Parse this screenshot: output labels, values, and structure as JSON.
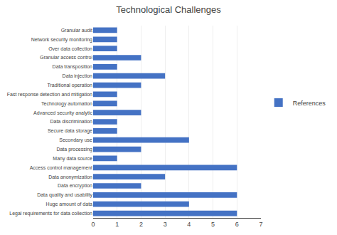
{
  "chart_data": {
    "type": "bar",
    "orientation": "horizontal",
    "title": "Technological Challenges",
    "categories": [
      "Legal requirements for data collection",
      "Huge amount of data",
      "Data quality and usability",
      "Data encryption",
      "Data anonymization",
      "Access control management",
      "Many data source",
      "Data processing",
      "Secondary use",
      "Secure data storage",
      "Data discrimination",
      "Advanced security analytic",
      "Technology automation",
      "Fast response detection and mitigation",
      "Traditional operation",
      "Data injection",
      "Data transposition",
      "Granular access control",
      "Over data collection",
      "Network security monitoring",
      "Granular audit"
    ],
    "series": [
      {
        "name": "References",
        "color": "#4472c4",
        "values": [
          6,
          4,
          6,
          2,
          3,
          6,
          1,
          2,
          4,
          1,
          1,
          2,
          1,
          1,
          2,
          3,
          1,
          2,
          1,
          1,
          1
        ]
      }
    ],
    "xlim": [
      0,
      7
    ],
    "xticks": [
      0,
      1,
      2,
      3,
      4,
      5,
      6,
      7
    ],
    "grid": true,
    "legend": "right"
  }
}
